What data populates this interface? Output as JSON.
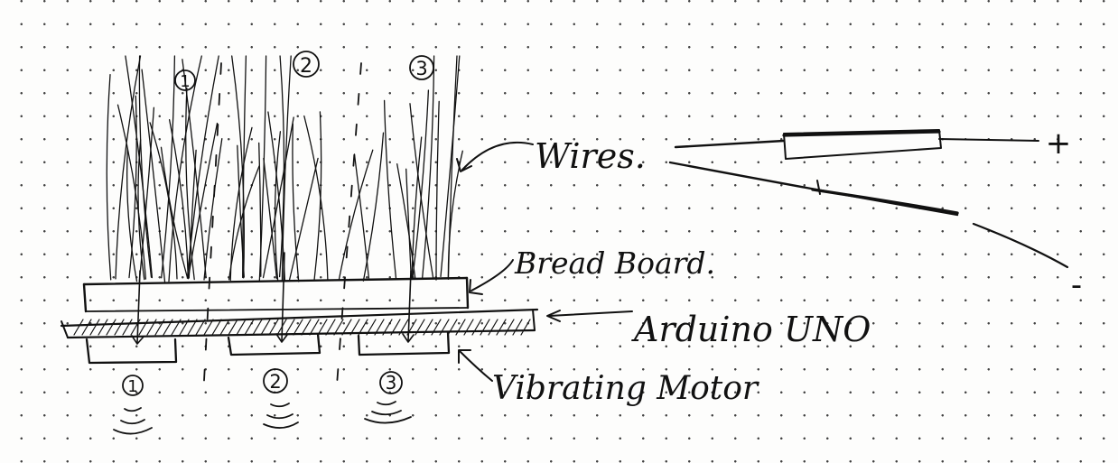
{
  "labels": {
    "wires": "Wires.",
    "bread_board": "Bread Board.",
    "arduino": "Arduino UNO",
    "motor": "Vibrating Motor",
    "plus": "+",
    "minus": "-"
  },
  "wire_group_numbers": [
    "1",
    "2",
    "3"
  ],
  "motor_numbers": [
    "1",
    "2",
    "3"
  ]
}
